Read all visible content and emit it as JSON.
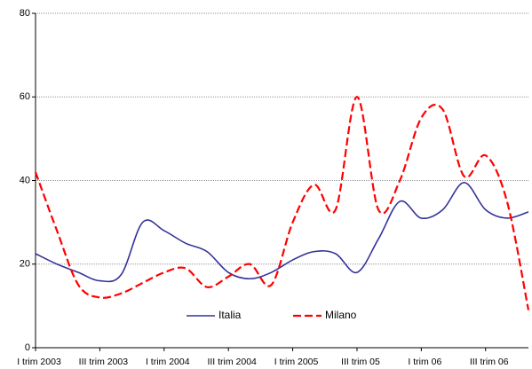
{
  "chart_data": {
    "type": "line",
    "categories": [
      "I trim 2003",
      null,
      null,
      "III trim 2003",
      null,
      null,
      "I trim 2004",
      null,
      null,
      "III trim 2004",
      null,
      null,
      "I trim 2005",
      null,
      null,
      "III trim 05",
      null,
      null,
      "I trim 06",
      null,
      null,
      "III trim 06",
      null,
      null
    ],
    "series": [
      {
        "name": "Italia",
        "color": "#333399",
        "dash": false,
        "values": [
          22.5,
          20,
          18,
          16,
          17.5,
          30,
          28,
          25,
          23,
          18,
          16.5,
          18,
          21,
          23,
          22.5,
          18,
          26,
          35,
          31,
          33,
          39.5,
          33,
          31,
          32.5
        ]
      },
      {
        "name": "Milano",
        "color": "#ff0000",
        "dash": true,
        "values": [
          42,
          28,
          15,
          12,
          13,
          15.5,
          18,
          19,
          14.5,
          17,
          20,
          15,
          30,
          39,
          33,
          60,
          33,
          40,
          55,
          57,
          41,
          46,
          35,
          9
        ]
      }
    ],
    "ylim": [
      0,
      80
    ],
    "yticks": [
      0,
      20,
      40,
      60,
      80
    ],
    "grid": true,
    "legend": "bottom"
  }
}
